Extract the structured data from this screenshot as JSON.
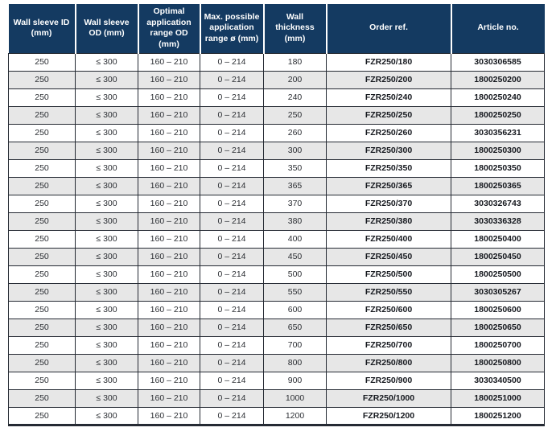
{
  "table": {
    "columns": [
      {
        "key": "wall-sleeve-id",
        "label": "Wall sleeve ID (mm)"
      },
      {
        "key": "wall-sleeve-od",
        "label": "Wall sleeve OD (mm)"
      },
      {
        "key": "optimal-range",
        "label": "Optimal application range OD (mm)"
      },
      {
        "key": "max-range",
        "label": "Max. possible application range ø (mm)"
      },
      {
        "key": "wall-thickness",
        "label": "Wall thickness (mm)"
      },
      {
        "key": "order-ref",
        "label": "Order ref."
      },
      {
        "key": "article-no",
        "label": "Article no."
      }
    ],
    "bold_columns": [
      "order-ref",
      "article-no"
    ],
    "rows": [
      [
        "250",
        "≤ 300",
        "160 – 210",
        "0 – 214",
        "180",
        "FZR250/180",
        "3030306585"
      ],
      [
        "250",
        "≤ 300",
        "160 – 210",
        "0 – 214",
        "200",
        "FZR250/200",
        "1800250200"
      ],
      [
        "250",
        "≤ 300",
        "160 – 210",
        "0 – 214",
        "240",
        "FZR250/240",
        "1800250240"
      ],
      [
        "250",
        "≤ 300",
        "160 – 210",
        "0 – 214",
        "250",
        "FZR250/250",
        "1800250250"
      ],
      [
        "250",
        "≤ 300",
        "160 – 210",
        "0 – 214",
        "260",
        "FZR250/260",
        "3030356231"
      ],
      [
        "250",
        "≤ 300",
        "160 – 210",
        "0 – 214",
        "300",
        "FZR250/300",
        "1800250300"
      ],
      [
        "250",
        "≤ 300",
        "160 – 210",
        "0 – 214",
        "350",
        "FZR250/350",
        "1800250350"
      ],
      [
        "250",
        "≤ 300",
        "160 – 210",
        "0 – 214",
        "365",
        "FZR250/365",
        "1800250365"
      ],
      [
        "250",
        "≤ 300",
        "160 – 210",
        "0 – 214",
        "370",
        "FZR250/370",
        "3030326743"
      ],
      [
        "250",
        "≤ 300",
        "160 – 210",
        "0 – 214",
        "380",
        "FZR250/380",
        "3030336328"
      ],
      [
        "250",
        "≤ 300",
        "160 – 210",
        "0 – 214",
        "400",
        "FZR250/400",
        "1800250400"
      ],
      [
        "250",
        "≤ 300",
        "160 – 210",
        "0 – 214",
        "450",
        "FZR250/450",
        "1800250450"
      ],
      [
        "250",
        "≤ 300",
        "160 – 210",
        "0 – 214",
        "500",
        "FZR250/500",
        "1800250500"
      ],
      [
        "250",
        "≤ 300",
        "160 – 210",
        "0 – 214",
        "550",
        "FZR250/550",
        "3030305267"
      ],
      [
        "250",
        "≤ 300",
        "160 – 210",
        "0 – 214",
        "600",
        "FZR250/600",
        "1800250600"
      ],
      [
        "250",
        "≤ 300",
        "160 – 210",
        "0 – 214",
        "650",
        "FZR250/650",
        "1800250650"
      ],
      [
        "250",
        "≤ 300",
        "160 – 210",
        "0 – 214",
        "700",
        "FZR250/700",
        "1800250700"
      ],
      [
        "250",
        "≤ 300",
        "160 – 210",
        "0 – 214",
        "800",
        "FZR250/800",
        "1800250800"
      ],
      [
        "250",
        "≤ 300",
        "160 – 210",
        "0 – 214",
        "900",
        "FZR250/900",
        "3030340500"
      ],
      [
        "250",
        "≤ 300",
        "160 – 210",
        "0 – 214",
        "1000",
        "FZR250/1000",
        "1800251000"
      ],
      [
        "250",
        "≤ 300",
        "160 – 210",
        "0 – 214",
        "1200",
        "FZR250/1200",
        "1800251200"
      ]
    ]
  },
  "colors": {
    "header_bg": "#143a61",
    "header_text": "#ffffff",
    "row_alt": "#e7e7e7",
    "row_white": "#ffffff",
    "border": "#252a33",
    "body_text": "#2b2e33"
  }
}
